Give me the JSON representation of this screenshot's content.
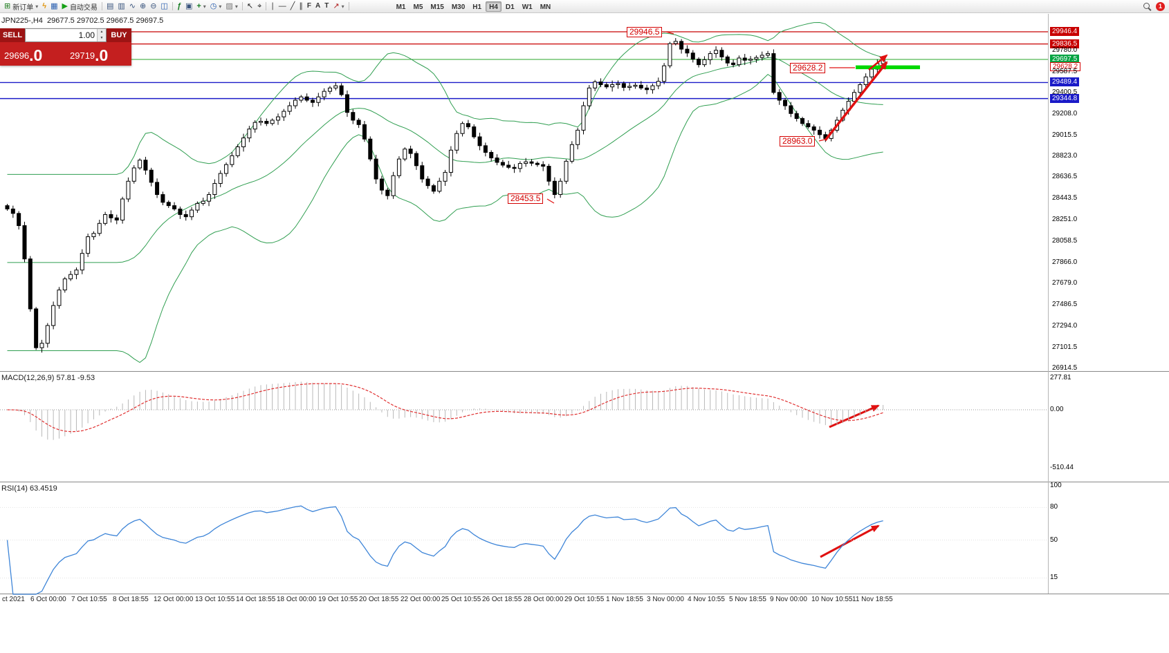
{
  "toolbar": {
    "items": [
      {
        "name": "new-order",
        "icon": "⊞",
        "label": "新订单",
        "caret": true
      },
      {
        "name": "quick-trade",
        "icon": "ϟ"
      },
      {
        "name": "market-watch",
        "icon": "▦"
      },
      {
        "name": "auto-trading",
        "icon": "▶",
        "label": "自动交易"
      },
      {
        "name": "sep"
      },
      {
        "name": "bar-chart",
        "icon": "▤"
      },
      {
        "name": "candle-chart",
        "icon": "▥"
      },
      {
        "name": "line-chart",
        "icon": "∿"
      },
      {
        "name": "zoom-in",
        "icon": "⊕"
      },
      {
        "name": "zoom-out",
        "icon": "⊖"
      },
      {
        "name": "tile-windows",
        "icon": "◫"
      },
      {
        "name": "sep"
      },
      {
        "name": "indicators",
        "icon": "ƒ"
      },
      {
        "name": "objects-list",
        "icon": "▣"
      },
      {
        "name": "add-indicator",
        "icon": "+",
        "caret": true
      },
      {
        "name": "period",
        "icon": "◷",
        "caret": true
      },
      {
        "name": "template",
        "icon": "▨",
        "caret": true
      },
      {
        "name": "sep"
      },
      {
        "name": "cursor",
        "icon": "↖"
      },
      {
        "name": "crosshair",
        "icon": "⌖"
      },
      {
        "name": "sep"
      },
      {
        "name": "vertical-line",
        "icon": "∣"
      },
      {
        "name": "horizontal-line",
        "icon": "―"
      },
      {
        "name": "trendline",
        "icon": "╱"
      },
      {
        "name": "channel",
        "icon": "∥"
      },
      {
        "name": "fibonacci",
        "icon": "F"
      },
      {
        "name": "text",
        "icon": "A"
      },
      {
        "name": "label",
        "icon": "T"
      },
      {
        "name": "arrows",
        "icon": "↗",
        "caret": true
      },
      {
        "name": "sep"
      }
    ],
    "timeframes": [
      "M1",
      "M5",
      "M15",
      "M30",
      "H1",
      "H4",
      "D1",
      "W1",
      "MN"
    ],
    "active_timeframe": "H4",
    "notification_count": "1"
  },
  "symbol_bar": {
    "text": "JPN225-,H4  29677.5 29702.5 29667.5 29697.5"
  },
  "trade_panel": {
    "sell_label": "SELL",
    "buy_label": "BUY",
    "volume": "1.00",
    "sell_price_int": "29696",
    "sell_price_dec": ".0",
    "buy_price_int": "29719",
    "buy_price_dec": ".0"
  },
  "macd_panel": {
    "label": "MACD(12,26,9) 57.81 -9.53",
    "axis_max": "277.81",
    "axis_zero": "0.00",
    "axis_min": "-510.44"
  },
  "rsi_panel": {
    "label": "RSI(14) 63.4519",
    "axis": [
      {
        "text": "100",
        "value": 100
      },
      {
        "text": "80",
        "value": 80
      },
      {
        "text": "50",
        "value": 50
      },
      {
        "text": "15",
        "value": 15
      }
    ]
  },
  "price_axis": {
    "labels": [
      {
        "value": "29946.4",
        "price": 29946.4,
        "style": "red"
      },
      {
        "value": "29836.5",
        "price": 29836.5,
        "style": "red"
      },
      {
        "value": "29780.0",
        "price": 29780.0,
        "style": "plain"
      },
      {
        "value": "29697.5",
        "price": 29697.5,
        "style": "green"
      },
      {
        "value": "29628.2",
        "price": 29628.2,
        "style": "outline"
      },
      {
        "value": "29587.5",
        "price": 29587.5,
        "style": "plain"
      },
      {
        "value": "29489.4",
        "price": 29489.4,
        "style": "blue"
      },
      {
        "value": "29400.5",
        "price": 29400.5,
        "style": "plain"
      },
      {
        "value": "29344.8",
        "price": 29344.8,
        "style": "blue"
      },
      {
        "value": "29208.0",
        "price": 29208.0,
        "style": "plain"
      },
      {
        "value": "29015.5",
        "price": 29015.5,
        "style": "plain"
      },
      {
        "value": "28823.0",
        "price": 28823.0,
        "style": "plain"
      },
      {
        "value": "28636.5",
        "price": 28636.5,
        "style": "plain"
      },
      {
        "value": "28443.5",
        "price": 28443.5,
        "style": "plain"
      },
      {
        "value": "28251.0",
        "price": 28251.0,
        "style": "plain"
      },
      {
        "value": "28058.5",
        "price": 28058.5,
        "style": "plain"
      },
      {
        "value": "27866.0",
        "price": 27866.0,
        "style": "plain"
      },
      {
        "value": "27679.0",
        "price": 27679.0,
        "style": "plain"
      },
      {
        "value": "27486.5",
        "price": 27486.5,
        "style": "plain"
      },
      {
        "value": "27294.0",
        "price": 27294.0,
        "style": "plain"
      },
      {
        "value": "27101.5",
        "price": 27101.5,
        "style": "plain"
      },
      {
        "value": "26914.5",
        "price": 26914.5,
        "style": "plain"
      }
    ]
  },
  "time_axis": [
    "ct 2021",
    "6 Oct 00:00",
    "7 Oct 10:55",
    "8 Oct 18:55",
    "12 Oct 00:00",
    "13 Oct 10:55",
    "14 Oct 18:55",
    "18 Oct 00:00",
    "19 Oct 10:55",
    "20 Oct 18:55",
    "22 Oct 00:00",
    "25 Oct 10:55",
    "26 Oct 18:55",
    "28 Oct 00:00",
    "29 Oct 10:55",
    "1 Nov 18:55",
    "3 Nov 00:00",
    "4 Nov 10:55",
    "5 Nov 18:55",
    "9 Nov 00:00",
    "10 Nov 10:55",
    "11 Nov 18:55"
  ],
  "chart_data": {
    "type": "candlestick",
    "title": "JPN225-,H4",
    "ohlc_header": {
      "open": 29677.5,
      "high": 29702.5,
      "low": 29667.5,
      "close": 29697.5
    },
    "price_range": [
      26914.5,
      29946.4
    ],
    "closes": [
      28350,
      28310,
      28200,
      27900,
      27450,
      27100,
      27140,
      27300,
      27480,
      27620,
      27720,
      27760,
      27800,
      27950,
      28100,
      28130,
      28220,
      28300,
      28270,
      28250,
      28440,
      28600,
      28720,
      28790,
      28700,
      28590,
      28480,
      28410,
      28380,
      28350,
      28300,
      28280,
      28340,
      28400,
      28420,
      28480,
      28580,
      28670,
      28750,
      28830,
      28910,
      28990,
      29070,
      29130,
      29140,
      29120,
      29150,
      29180,
      29230,
      29280,
      29330,
      29360,
      29330,
      29310,
      29360,
      29410,
      29440,
      29460,
      29380,
      29220,
      29150,
      29110,
      28980,
      28800,
      28620,
      28520,
      28470,
      28650,
      28800,
      28890,
      28850,
      28740,
      28620,
      28560,
      28510,
      28600,
      28680,
      28880,
      29030,
      29120,
      29090,
      29000,
      28920,
      28860,
      28810,
      28770,
      28745,
      28725,
      28715,
      28760,
      28775,
      28762,
      28750,
      28735,
      28600,
      28480,
      28600,
      28780,
      28930,
      29060,
      29280,
      29440,
      29495,
      29470,
      29450,
      29470,
      29480,
      29445,
      29455,
      29465,
      29440,
      29425,
      29460,
      29500,
      29640,
      29840,
      29860,
      29790,
      29755,
      29700,
      29650,
      29695,
      29750,
      29780,
      29720,
      29665,
      29650,
      29710,
      29690,
      29700,
      29715,
      29735,
      29750,
      29400,
      29330,
      29280,
      29210,
      29165,
      29120,
      29090,
      29060,
      29020,
      28985,
      29060,
      29150,
      29240,
      29320,
      29400,
      29470,
      29540,
      29610,
      29660,
      29697.5
    ],
    "levels": {
      "resistance_lines": [
        29946.4,
        29836.5
      ],
      "current_price_line": 29697.5,
      "support_lines": [
        29489.4,
        29344.8
      ],
      "highlight_zone_price": 29628.2
    },
    "annotations": [
      {
        "text": "29946.5",
        "price": 29946.5,
        "role": "swing-high"
      },
      {
        "text": "29628.2",
        "price": 29628.2,
        "role": "breakout-level"
      },
      {
        "text": "28963.0",
        "price": 28963.0,
        "role": "swing-low"
      },
      {
        "text": "28453.5",
        "price": 28453.5,
        "role": "support-low"
      }
    ],
    "indicators": {
      "bollinger_bands": {
        "period": 20,
        "deviation": 2,
        "color": "#2f9e50"
      },
      "macd": {
        "fast": 12,
        "slow": 26,
        "signal": 9,
        "value": 57.81,
        "signal_value": -9.53,
        "axis": [
          277.81,
          0.0,
          -510.44
        ]
      },
      "rsi": {
        "period": 14,
        "value": 63.4519,
        "axis": [
          100,
          80,
          50,
          15
        ]
      }
    },
    "colors": {
      "resistance": "#c80000",
      "support": "#1a1ac8",
      "current": "#2aa52a",
      "highlight": "#00d800",
      "trend_arrow": "#e01010",
      "macd_signal": "#e03030",
      "rsi_line": "#3e85d8"
    }
  }
}
